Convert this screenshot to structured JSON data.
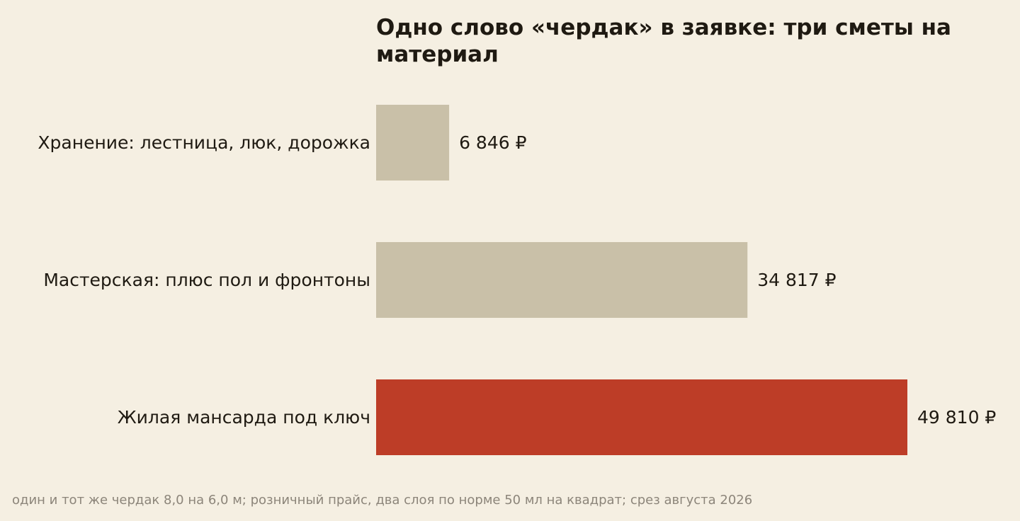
{
  "chart_data": {
    "type": "bar",
    "orientation": "horizontal",
    "title": "Одно слово «чердак» в заявке: три сметы на материал",
    "categories": [
      "Хранение: лестница, люк, дорожка",
      "Мастерская: плюс пол и фронтоны",
      "Жилая мансарда под ключ"
    ],
    "values": [
      6846,
      34817,
      49810
    ],
    "value_labels": [
      "6 846 ₽",
      "34 817 ₽",
      "49 810 ₽"
    ],
    "xlim": [
      0,
      49810
    ],
    "grid": false,
    "legend": "none",
    "colors": [
      "#c9c0a8",
      "#c9c0a8",
      "#bd3d27"
    ],
    "highlight_index": 2,
    "note": "один и тот же чердак 8,0 на 6,0 м; розничный прайс, два слоя по норме 50 мл на квадрат; срез августа 2026"
  },
  "colors": {
    "background": "#f5efe2",
    "text": "#1f1a12",
    "muted_text": "#8c857a",
    "bar_default": "#c9c0a8",
    "bar_highlight": "#bd3d27"
  }
}
